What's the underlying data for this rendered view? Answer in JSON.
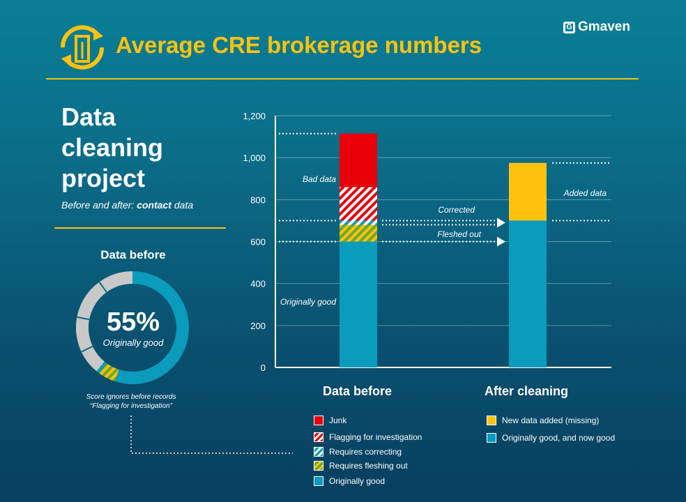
{
  "header": {
    "title": "Average CRE brokerage numbers",
    "brand": "Gmaven"
  },
  "left": {
    "heading": "Data cleaning project",
    "subtitle_prefix": "Before and after: ",
    "subtitle_bold": "contact",
    "subtitle_suffix": " data",
    "donut_title": "Data before",
    "donut_percent": "55%",
    "donut_label": "Originally good",
    "note_line1": "Score ignores before records",
    "note_line2": "“Flagging for investigation”"
  },
  "colors": {
    "gold": "#ffc20e",
    "junk": "#e8000b",
    "teal": "#0a9bbd",
    "grey": "#c8c8c8",
    "olive": "#9acd32"
  },
  "chart_data": [
    {
      "type": "bar",
      "stacked": true,
      "categories": [
        "Data before",
        "After cleaning"
      ],
      "ylim": [
        0,
        1200
      ],
      "yticks": [
        "0",
        "200",
        "400",
        "600",
        "800",
        "1,000",
        "1,200"
      ],
      "grid": true,
      "series": [
        {
          "name": "Originally good",
          "values": [
            600,
            null
          ]
        },
        {
          "name": "Requires fleshing out",
          "values": [
            80,
            null
          ]
        },
        {
          "name": "Requires correcting",
          "values": [
            20,
            null
          ]
        },
        {
          "name": "Flagging for investigation",
          "values": [
            160,
            null
          ]
        },
        {
          "name": "Junk",
          "values": [
            255,
            null
          ]
        },
        {
          "name": "Originally good, and now good",
          "values": [
            null,
            700
          ]
        },
        {
          "name": "New data added (missing)",
          "values": [
            null,
            275
          ]
        }
      ],
      "annotations": [
        "Bad data",
        "Originally good",
        "Corrected",
        "Fleshed out",
        "Added data"
      ],
      "legend": {
        "before": [
          "Junk",
          "Flagging for investigation",
          "Requires correcting",
          "Requires fleshing out",
          "Originally good"
        ],
        "after": [
          "New data added (missing)",
          "Originally good, and now good"
        ]
      }
    },
    {
      "type": "pie",
      "donut": true,
      "title": "Data before",
      "slices": [
        {
          "name": "Originally good",
          "value": 55
        },
        {
          "name": "Requires fleshing out",
          "value": 5
        },
        {
          "name": "Requires correcting",
          "value": 1
        },
        {
          "name": "Junk",
          "value": 39
        }
      ]
    }
  ]
}
